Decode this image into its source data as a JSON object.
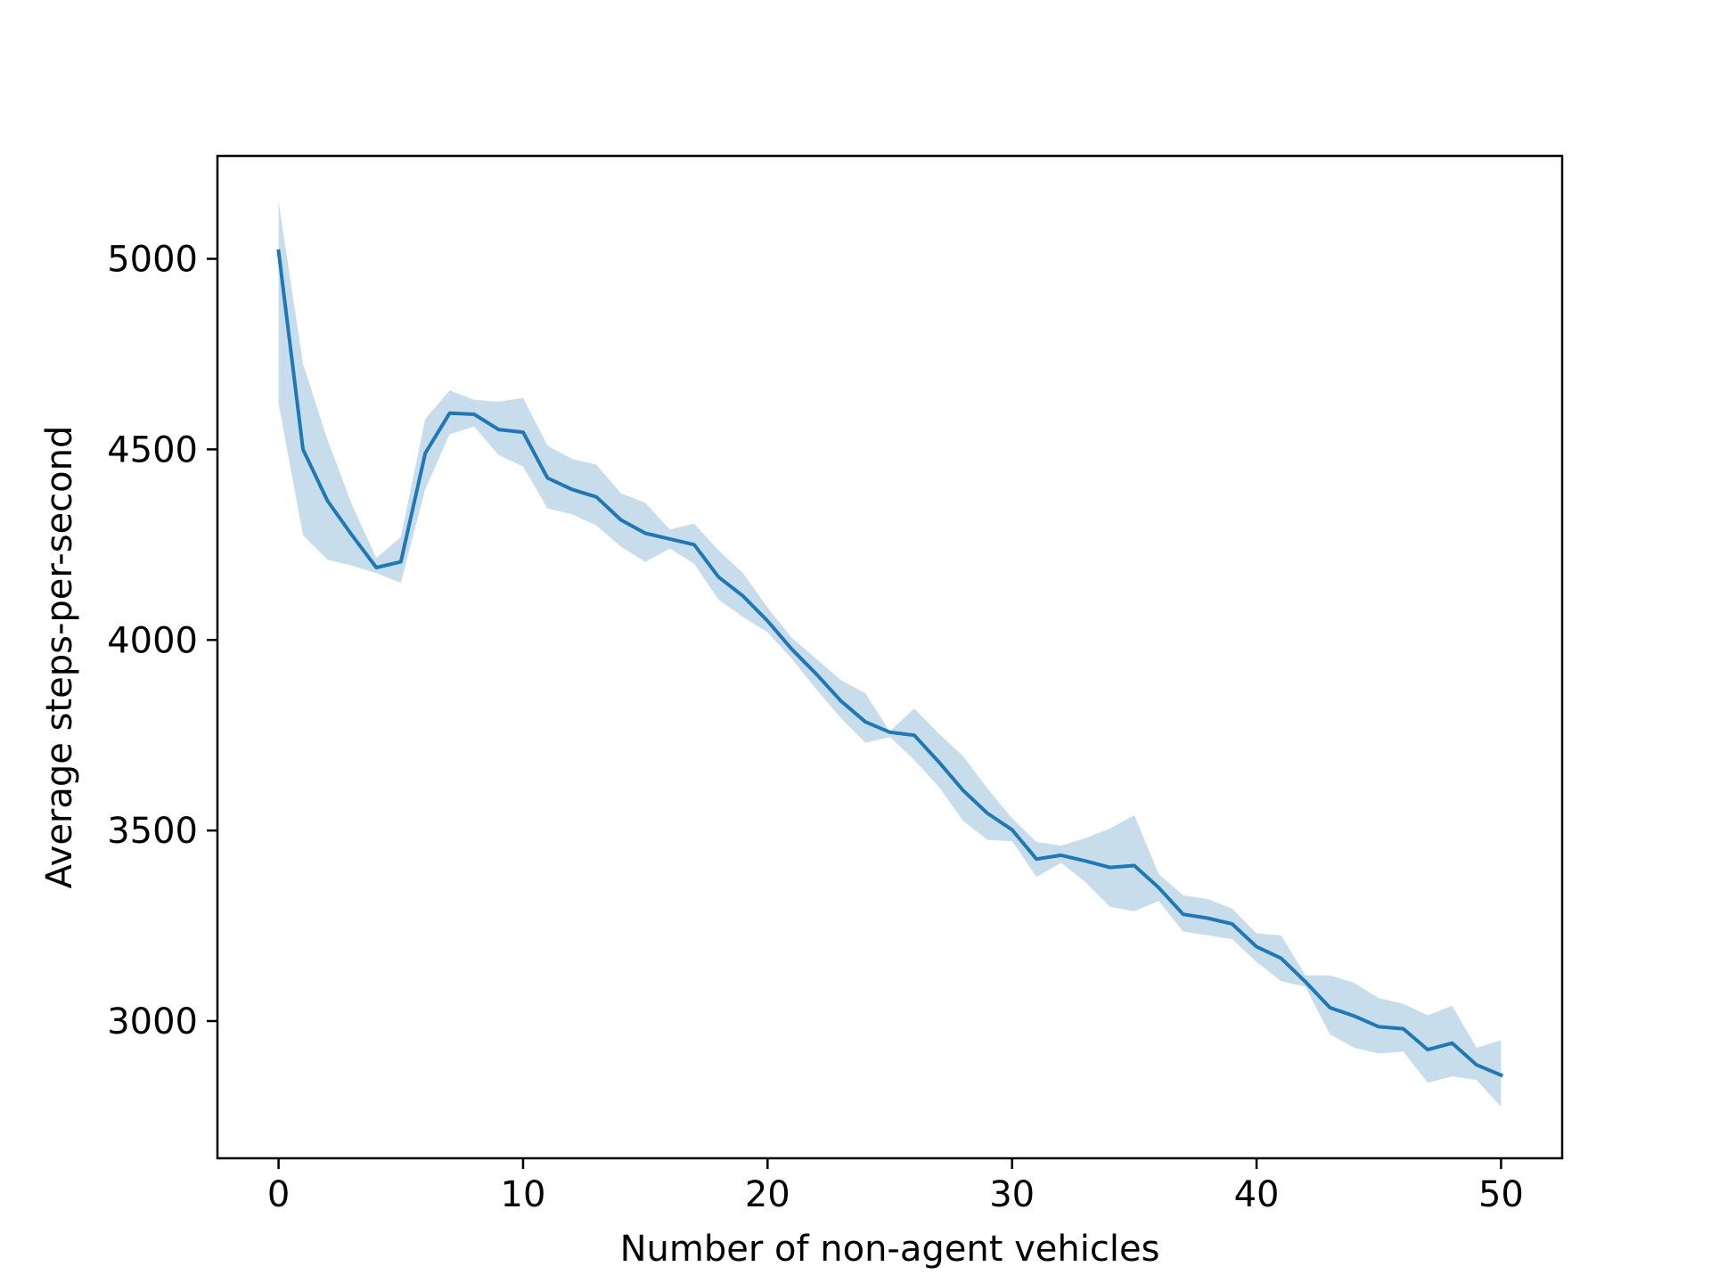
{
  "chart_data": {
    "type": "line",
    "xlabel": "Number of non-agent vehicles",
    "ylabel": "Average steps-per-second",
    "xlim": [
      -2.5,
      52.5
    ],
    "ylim": [
      2640,
      5270
    ],
    "xticks": [
      0,
      10,
      20,
      30,
      40,
      50
    ],
    "yticks": [
      3000,
      3500,
      4000,
      4500,
      5000
    ],
    "grid": false,
    "line_color": "#1f77b4",
    "band_color": "#1f77b4",
    "band_opacity": 0.25,
    "x": [
      0,
      1,
      2,
      3,
      4,
      5,
      6,
      7,
      8,
      9,
      10,
      11,
      12,
      13,
      14,
      15,
      16,
      17,
      18,
      19,
      20,
      21,
      22,
      23,
      24,
      25,
      26,
      27,
      28,
      29,
      30,
      31,
      32,
      33,
      34,
      35,
      36,
      37,
      38,
      39,
      40,
      41,
      42,
      43,
      44,
      45,
      46,
      47,
      48,
      49,
      50
    ],
    "series": [
      {
        "values": [
          5020,
          4500,
          4365,
          4275,
          4190,
          4205,
          4490,
          4595,
          4592,
          4552,
          4545,
          4425,
          4395,
          4375,
          4315,
          4280,
          4265,
          4250,
          4165,
          4115,
          4050,
          3975,
          3910,
          3840,
          3785,
          3758,
          3750,
          3680,
          3605,
          3545,
          3502,
          3425,
          3435,
          3420,
          3403,
          3408,
          3350,
          3280,
          3270,
          3255,
          3195,
          3165,
          3103,
          3035,
          3013,
          2985,
          2980,
          2925,
          2942,
          2885,
          2858
        ],
        "lower": [
          4620,
          4275,
          4210,
          4195,
          4175,
          4150,
          4395,
          4540,
          4560,
          4485,
          4455,
          4345,
          4330,
          4300,
          4245,
          4205,
          4240,
          4200,
          4105,
          4060,
          4020,
          3950,
          3870,
          3795,
          3730,
          3745,
          3685,
          3615,
          3525,
          3475,
          3472,
          3378,
          3415,
          3365,
          3300,
          3288,
          3315,
          3235,
          3225,
          3215,
          3155,
          3105,
          3090,
          2965,
          2930,
          2915,
          2920,
          2838,
          2855,
          2845,
          2775
        ],
        "upper": [
          5150,
          4725,
          4525,
          4355,
          4215,
          4270,
          4580,
          4655,
          4630,
          4625,
          4635,
          4510,
          4475,
          4460,
          4385,
          4360,
          4290,
          4305,
          4235,
          4175,
          4085,
          4005,
          3950,
          3895,
          3860,
          3760,
          3820,
          3755,
          3695,
          3610,
          3532,
          3470,
          3460,
          3480,
          3505,
          3540,
          3385,
          3330,
          3320,
          3295,
          3230,
          3225,
          3120,
          3120,
          3100,
          3060,
          3045,
          3015,
          3040,
          2930,
          2950
        ]
      }
    ]
  }
}
